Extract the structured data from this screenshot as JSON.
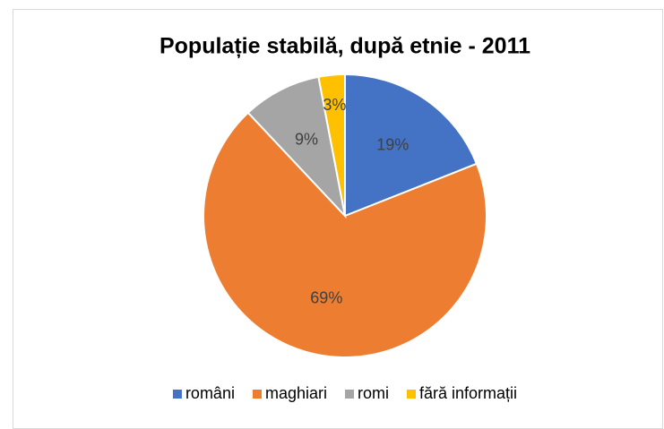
{
  "chart_data": {
    "type": "pie",
    "title": "Populație stabilă, după etnie - 2011",
    "categories": [
      "români",
      "maghiari",
      "romi",
      "fără informații"
    ],
    "values": [
      19,
      69,
      9,
      3
    ],
    "value_labels": [
      "19%",
      "69%",
      "9%",
      "3%"
    ],
    "colors": [
      "#4472c4",
      "#ed7d31",
      "#a5a5a5",
      "#ffc000"
    ],
    "legend": "bottom"
  }
}
